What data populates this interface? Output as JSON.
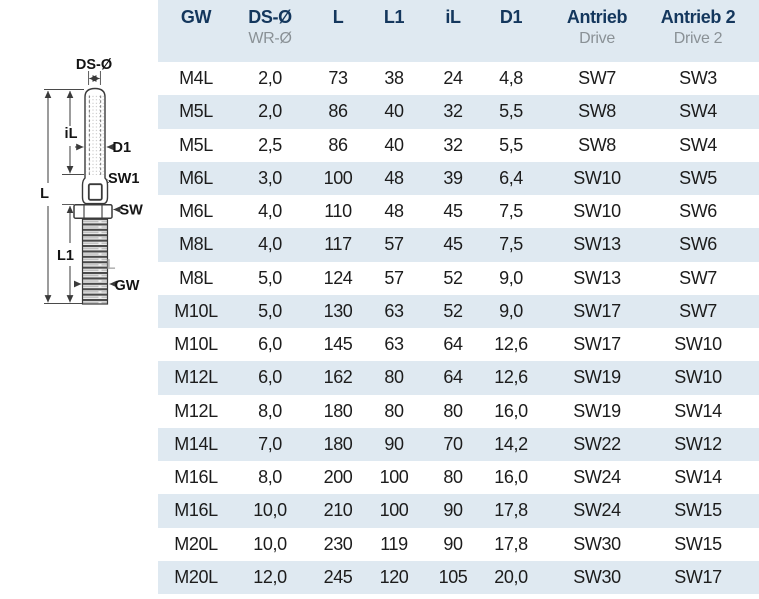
{
  "diagram": {
    "labels": {
      "ds_o": "DS-Ø",
      "il": "iL",
      "d1": "D1",
      "sw1": "SW1",
      "sw": "SW",
      "l_total": "L",
      "l1": "L1",
      "l_thread": "L",
      "gw": "GW"
    },
    "line_color": "#3a3a3a",
    "label_color": "#141414",
    "muted_label_color": "#b5b5b5"
  },
  "table": {
    "colors": {
      "header_text": "#14375d",
      "sub_header_text": "#8a9196",
      "stripe": "#dfe9f1",
      "data_text": "#1c1c1c"
    },
    "header": {
      "cols": [
        {
          "main": "GW",
          "sub": ""
        },
        {
          "main": "DS-Ø",
          "sub": "WR-Ø"
        },
        {
          "main": "L",
          "sub": ""
        },
        {
          "main": "L1",
          "sub": ""
        },
        {
          "main": "iL",
          "sub": ""
        },
        {
          "main": "D1",
          "sub": ""
        },
        {
          "main": "Antrieb",
          "sub": "Drive"
        },
        {
          "main": "Antrieb 2",
          "sub": "Drive 2"
        }
      ]
    },
    "rows": [
      [
        "M4L",
        "2,0",
        "73",
        "38",
        "24",
        "4,8",
        "SW7",
        "SW3"
      ],
      [
        "M5L",
        "2,0",
        "86",
        "40",
        "32",
        "5,5",
        "SW8",
        "SW4"
      ],
      [
        "M5L",
        "2,5",
        "86",
        "40",
        "32",
        "5,5",
        "SW8",
        "SW4"
      ],
      [
        "M6L",
        "3,0",
        "100",
        "48",
        "39",
        "6,4",
        "SW10",
        "SW5"
      ],
      [
        "M6L",
        "4,0",
        "110",
        "48",
        "45",
        "7,5",
        "SW10",
        "SW6"
      ],
      [
        "M8L",
        "4,0",
        "117",
        "57",
        "45",
        "7,5",
        "SW13",
        "SW6"
      ],
      [
        "M8L",
        "5,0",
        "124",
        "57",
        "52",
        "9,0",
        "SW13",
        "SW7"
      ],
      [
        "M10L",
        "5,0",
        "130",
        "63",
        "52",
        "9,0",
        "SW17",
        "SW7"
      ],
      [
        "M10L",
        "6,0",
        "145",
        "63",
        "64",
        "12,6",
        "SW17",
        "SW10"
      ],
      [
        "M12L",
        "6,0",
        "162",
        "80",
        "64",
        "12,6",
        "SW19",
        "SW10"
      ],
      [
        "M12L",
        "8,0",
        "180",
        "80",
        "80",
        "16,0",
        "SW19",
        "SW14"
      ],
      [
        "M14L",
        "7,0",
        "180",
        "90",
        "70",
        "14,2",
        "SW22",
        "SW12"
      ],
      [
        "M16L",
        "8,0",
        "200",
        "100",
        "80",
        "16,0",
        "SW24",
        "SW14"
      ],
      [
        "M16L",
        "10,0",
        "210",
        "100",
        "90",
        "17,8",
        "SW24",
        "SW15"
      ],
      [
        "M20L",
        "10,0",
        "230",
        "119",
        "90",
        "17,8",
        "SW30",
        "SW15"
      ],
      [
        "M20L",
        "12,0",
        "245",
        "120",
        "105",
        "20,0",
        "SW30",
        "SW17"
      ]
    ]
  }
}
